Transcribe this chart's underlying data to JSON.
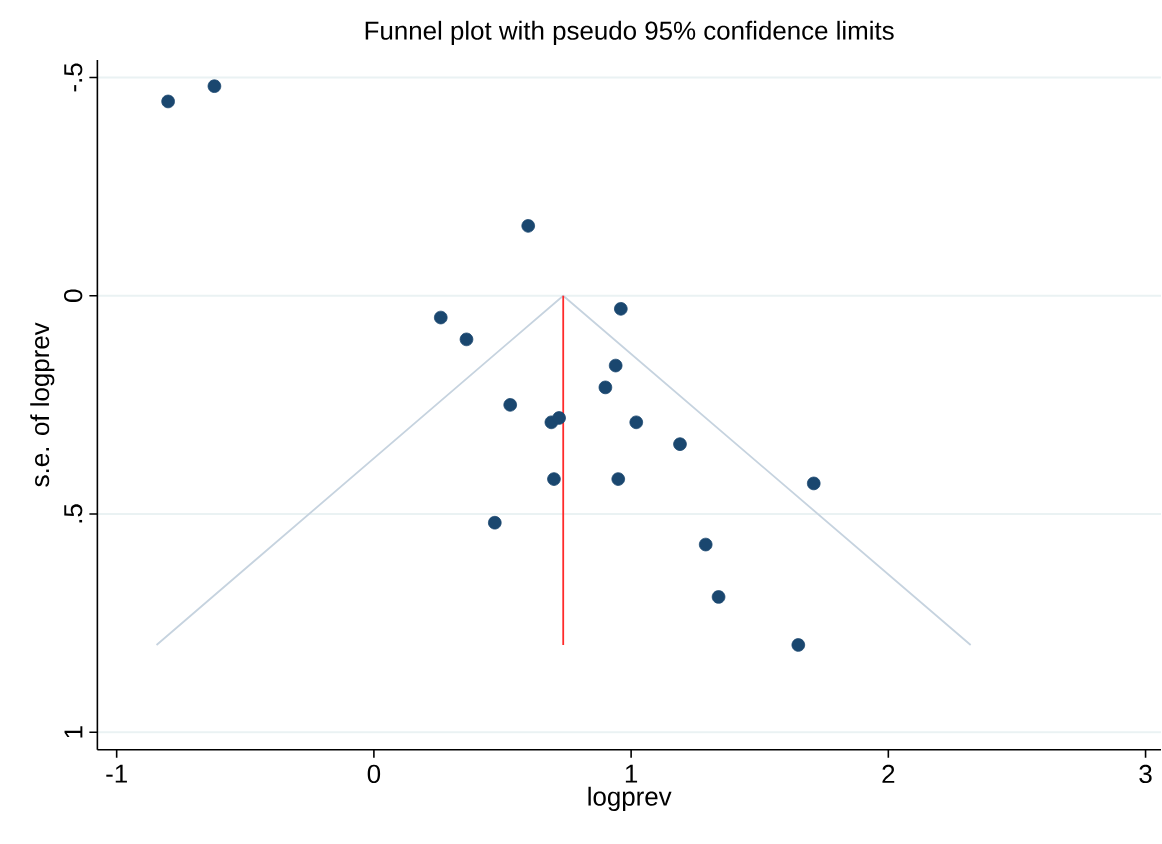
{
  "chart_data": {
    "type": "scatter",
    "title": "Funnel plot with pseudo 95% confidence limits",
    "xlabel": "logprev",
    "ylabel": "s.e. of logprev",
    "xlim": [
      -1.075,
      3.06
    ],
    "ylim": [
      1.04,
      -0.54
    ],
    "xticks": [
      -1,
      0,
      1,
      2,
      3
    ],
    "yticks": [
      {
        "value": -0.5,
        "label": "-.5"
      },
      0,
      {
        "value": 0.5,
        "label": ".5"
      },
      1
    ],
    "grid": "y",
    "series": [
      {
        "type": "line",
        "marker": "none",
        "color": "#c6d3df",
        "x": [
          -0.845,
          0.736,
          2.32
        ],
        "values": [
          0.8,
          0,
          0.8
        ]
      },
      {
        "type": "line",
        "marker": "none",
        "color": "#ff2a2a",
        "x": [
          0.736,
          0.736
        ],
        "values": [
          0,
          0.8
        ]
      },
      {
        "marker": "circle",
        "color": "#1a476f",
        "x": [
          -0.8,
          -0.62,
          0.6,
          0.26,
          0.36,
          0.96,
          0.94,
          0.9,
          0.53,
          0.69,
          0.72,
          1.02,
          1.19,
          0.7,
          0.95,
          1.71,
          0.47,
          1.29,
          1.34,
          1.65
        ],
        "values": [
          -0.445,
          -0.48,
          -0.16,
          0.05,
          0.1,
          0.03,
          0.16,
          0.21,
          0.25,
          0.29,
          0.28,
          0.29,
          0.34,
          0.42,
          0.42,
          0.43,
          0.52,
          0.57,
          0.69,
          0.8
        ]
      }
    ]
  }
}
